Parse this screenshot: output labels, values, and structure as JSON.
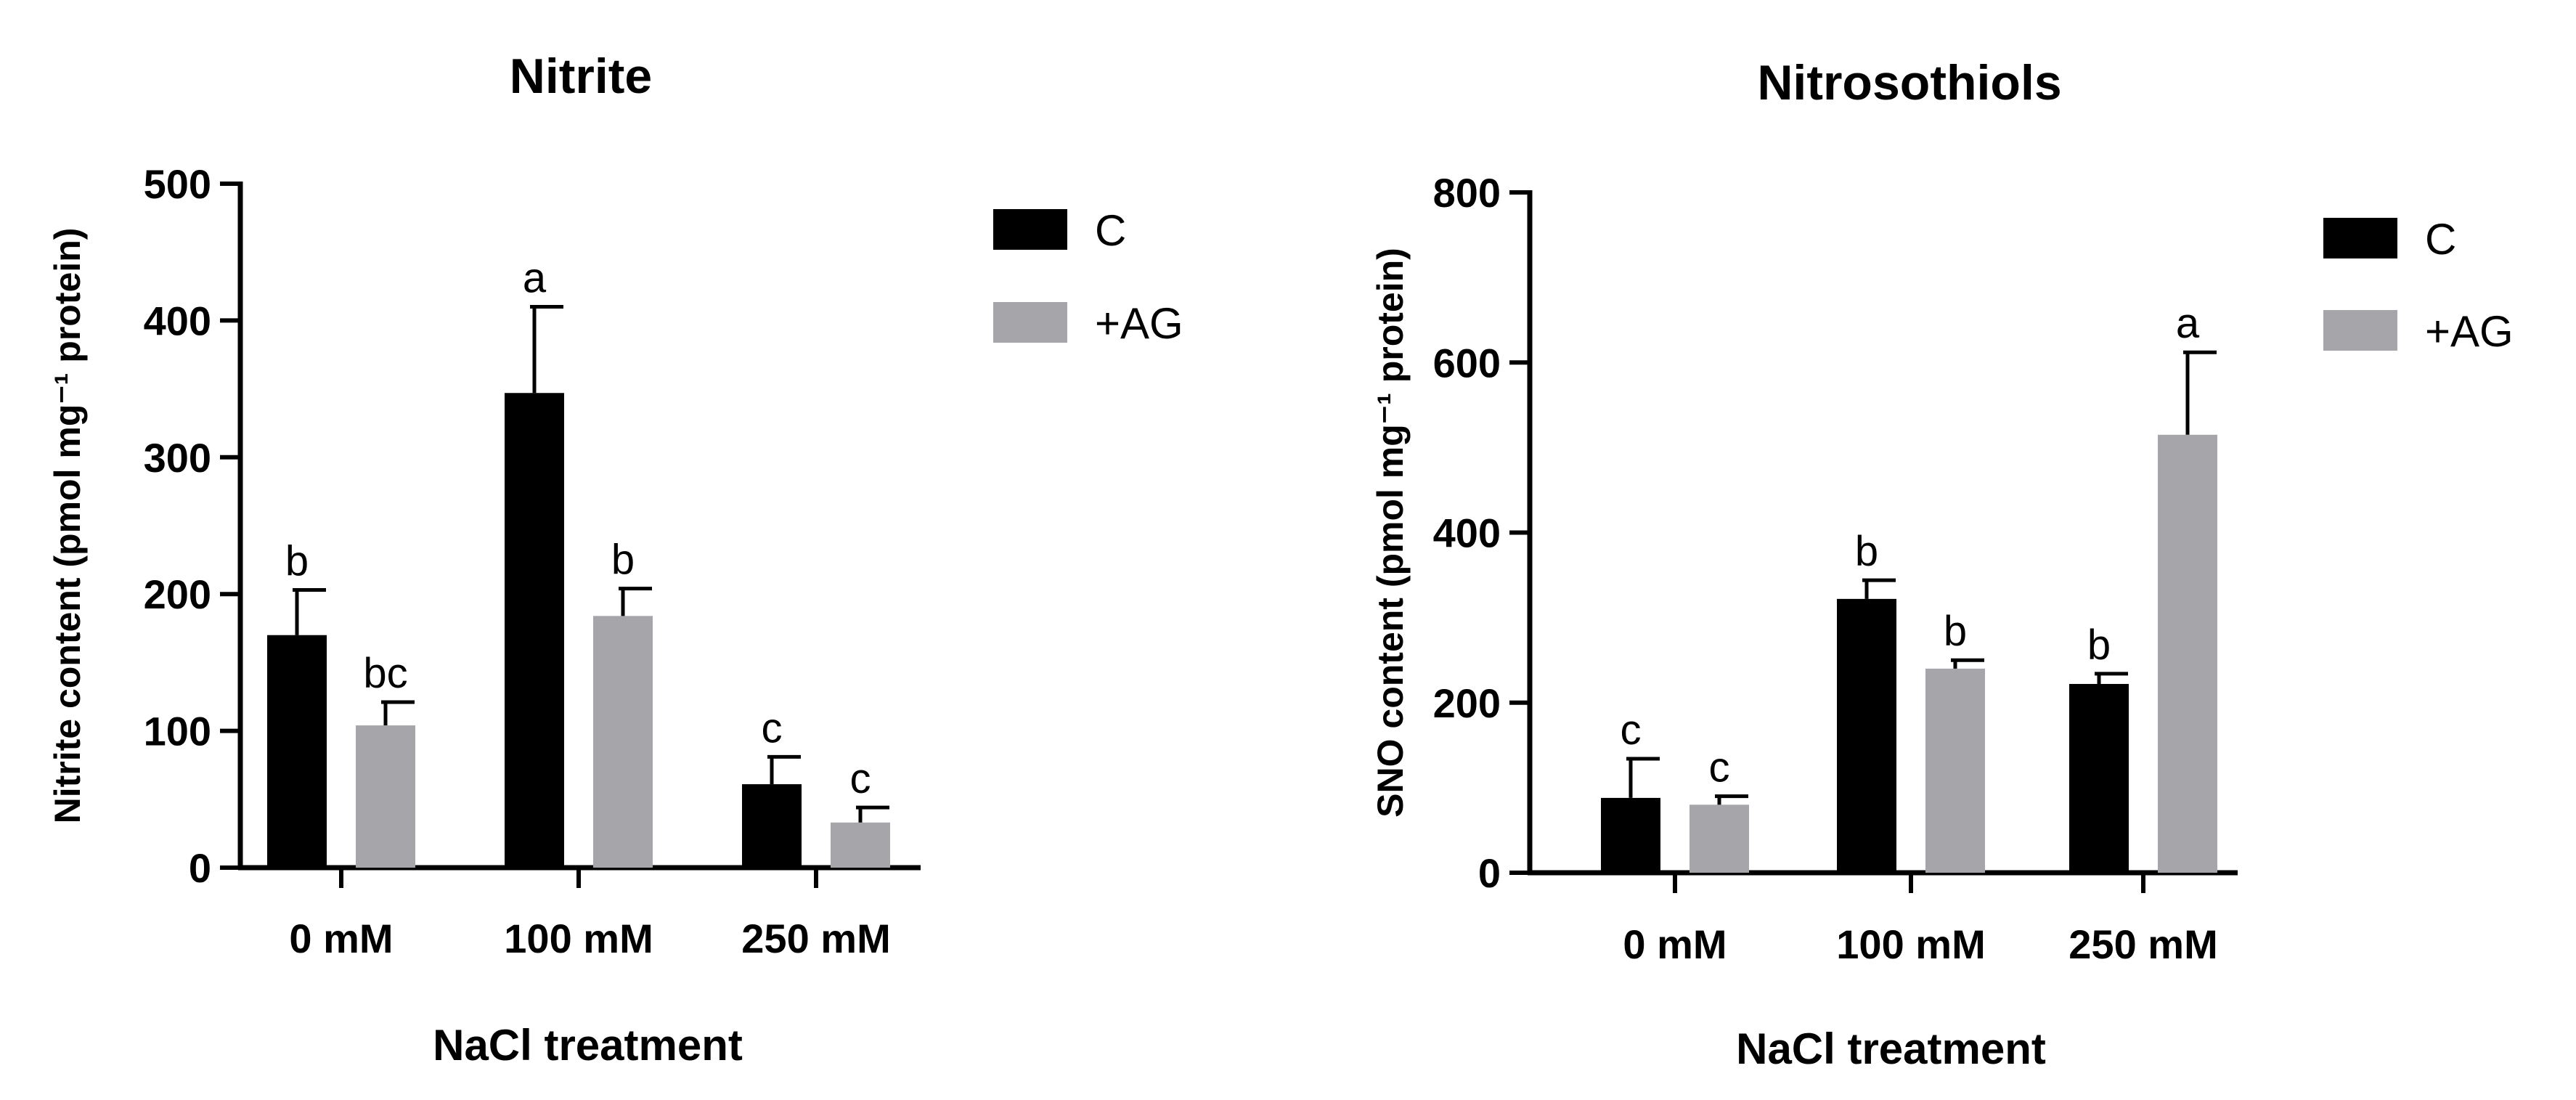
{
  "chart_data": [
    {
      "type": "bar",
      "title": "Nitrite",
      "xlabel": "NaCl treatment",
      "ylabel": "Nitrite content (pmol mg⁻¹ protein)",
      "ylim": [
        0,
        500
      ],
      "yticks": [
        0,
        100,
        200,
        300,
        400,
        500
      ],
      "categories": [
        "0 mM",
        "100 mM",
        "250 mM"
      ],
      "series": [
        {
          "name": "C",
          "color": "#000000",
          "values": [
            170,
            347,
            61
          ],
          "errors": [
            33,
            63,
            20
          ],
          "letters": [
            "b",
            "a",
            "c"
          ]
        },
        {
          "name": "+AG",
          "color": "#a6a6aa",
          "values": [
            104,
            184,
            33
          ],
          "errors": [
            17,
            20,
            11
          ],
          "letters": [
            "bc",
            "b",
            "c"
          ]
        }
      ],
      "legend_position": "top-right"
    },
    {
      "type": "bar",
      "title": "Nitrosothiols",
      "xlabel": "NaCl treatment",
      "ylabel": "SNO content (pmol mg⁻¹ protein)",
      "ylim": [
        0,
        800
      ],
      "yticks": [
        0,
        200,
        400,
        600,
        800
      ],
      "categories": [
        "0 mM",
        "100 mM",
        "250 mM"
      ],
      "series": [
        {
          "name": "C",
          "color": "#000000",
          "values": [
            88,
            322,
            222
          ],
          "errors": [
            46,
            22,
            12
          ],
          "letters": [
            "c",
            "b",
            "b"
          ]
        },
        {
          "name": "+AG",
          "color": "#a6a6aa",
          "values": [
            80,
            240,
            515
          ],
          "errors": [
            10,
            10,
            97
          ],
          "letters": [
            "c",
            "b",
            "a"
          ]
        }
      ],
      "legend_position": "top-right"
    }
  ]
}
